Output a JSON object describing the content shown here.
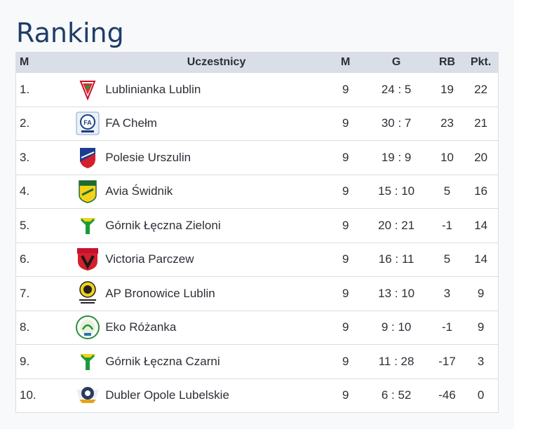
{
  "page": {
    "title": "Ranking"
  },
  "table": {
    "headers": {
      "pos": "M",
      "team": "Uczestnicy",
      "matches": "M",
      "goals": "G",
      "goal_diff": "RB",
      "points": "Pkt."
    },
    "rows": [
      {
        "pos": "1.",
        "team": "Lublinianka Lublin",
        "matches": "9",
        "goals": "24 : 5",
        "goal_diff": "19",
        "points": "22",
        "logo_icon": "lublinianka-crest-icon"
      },
      {
        "pos": "2.",
        "team": "FA Chełm",
        "matches": "9",
        "goals": "30 : 7",
        "goal_diff": "23",
        "points": "21",
        "logo_icon": "fa-chelm-crest-icon"
      },
      {
        "pos": "3.",
        "team": "Polesie Urszulin",
        "matches": "9",
        "goals": "19 : 9",
        "goal_diff": "10",
        "points": "20",
        "logo_icon": "polesie-crest-icon"
      },
      {
        "pos": "4.",
        "team": "Avia Świdnik",
        "matches": "9",
        "goals": "15 : 10",
        "goal_diff": "5",
        "points": "16",
        "logo_icon": "avia-crest-icon"
      },
      {
        "pos": "5.",
        "team": "Górnik Łęczna Zieloni",
        "matches": "9",
        "goals": "20 : 21",
        "goal_diff": "-1",
        "points": "14",
        "logo_icon": "gornik-crest-icon"
      },
      {
        "pos": "6.",
        "team": "Victoria Parczew",
        "matches": "9",
        "goals": "16 : 11",
        "goal_diff": "5",
        "points": "14",
        "logo_icon": "victoria-crest-icon"
      },
      {
        "pos": "7.",
        "team": "AP Bronowice Lublin",
        "matches": "9",
        "goals": "13 : 10",
        "goal_diff": "3",
        "points": "9",
        "logo_icon": "bronowice-crest-icon"
      },
      {
        "pos": "8.",
        "team": "Eko Różanka",
        "matches": "9",
        "goals": "9 : 10",
        "goal_diff": "-1",
        "points": "9",
        "logo_icon": "eko-crest-icon"
      },
      {
        "pos": "9.",
        "team": "Górnik Łęczna Czarni",
        "matches": "9",
        "goals": "11 : 28",
        "goal_diff": "-17",
        "points": "3",
        "logo_icon": "gornik-crest-icon"
      },
      {
        "pos": "10.",
        "team": "Dubler Opole Lubelskie",
        "matches": "9",
        "goals": "6 : 52",
        "goal_diff": "-46",
        "points": "0",
        "logo_icon": "dubler-crest-icon"
      }
    ]
  },
  "colors": {
    "title": "#1f3d68",
    "header_bg": "#d9dee7",
    "border": "#dadde3"
  }
}
